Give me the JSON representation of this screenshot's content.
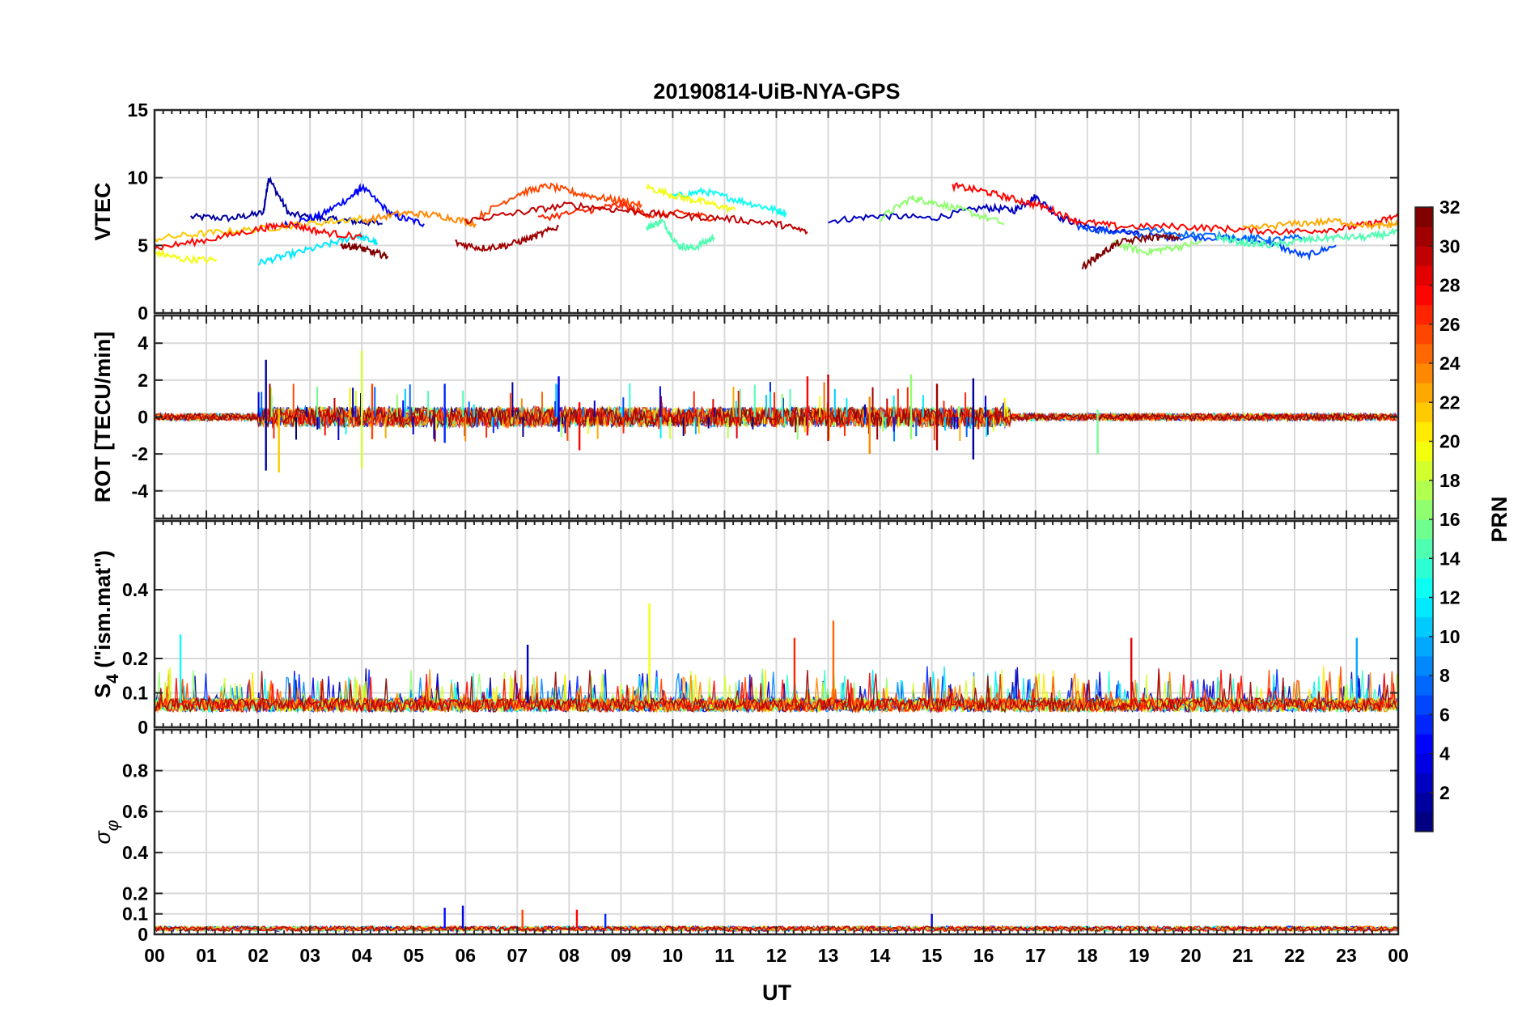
{
  "chart_data": {
    "type": "line",
    "title": "20190814-UiB-NYA-GPS",
    "xlabel": "UT",
    "x_tick_labels": [
      "00",
      "01",
      "02",
      "03",
      "04",
      "05",
      "06",
      "07",
      "08",
      "09",
      "10",
      "11",
      "12",
      "13",
      "14",
      "15",
      "16",
      "17",
      "18",
      "19",
      "20",
      "21",
      "22",
      "23",
      "00"
    ],
    "xlim": [
      0,
      24
    ],
    "grid": true,
    "panels": [
      {
        "name": "vtec",
        "ylabel": "VTEC",
        "ylim": [
          0,
          15
        ],
        "yticks": [
          0,
          5,
          10,
          15
        ],
        "ytick_labels": [
          "0",
          "5",
          "10",
          "15"
        ],
        "series": [
          {
            "prn": 2,
            "x": [
              0.7,
              1.5,
              2.1,
              2.2,
              2.6,
              3.2,
              3.8,
              4.4
            ],
            "y": [
              7.1,
              7.0,
              7.4,
              10.0,
              7.3,
              7.0,
              6.8,
              6.6
            ]
          },
          {
            "prn": 5,
            "x": [
              2.5,
              3.2,
              3.8,
              4.0,
              4.6,
              5.2
            ],
            "y": [
              6.5,
              7.2,
              8.6,
              9.3,
              7.2,
              6.6
            ]
          },
          {
            "prn": 3,
            "x": [
              13.0,
              14.0,
              15.0,
              16.0,
              16.6,
              17.0,
              17.5,
              18.2,
              19.0
            ],
            "y": [
              6.8,
              7.2,
              7.0,
              7.8,
              7.6,
              8.6,
              7.0,
              6.2,
              5.8
            ]
          },
          {
            "prn": 7,
            "x": [
              17.8,
              18.5,
              19.5,
              20.5,
              21.5,
              22.2,
              22.8
            ],
            "y": [
              6.4,
              6.0,
              5.6,
              5.6,
              5.2,
              4.2,
              5.0
            ]
          },
          {
            "prn": 12,
            "x": [
              2.0,
              2.6,
              3.3,
              3.9,
              4.3
            ],
            "y": [
              3.7,
              4.3,
              5.0,
              5.7,
              5.2
            ]
          },
          {
            "prn": 13,
            "x": [
              10.0,
              10.6,
              11.2,
              11.8,
              12.2
            ],
            "y": [
              8.6,
              9.0,
              8.4,
              7.8,
              7.4
            ]
          },
          {
            "prn": 15,
            "x": [
              9.5,
              9.8,
              10.1,
              10.4,
              10.8
            ],
            "y": [
              6.3,
              6.8,
              5.0,
              4.8,
              5.6
            ]
          },
          {
            "prn": 17,
            "x": [
              14.0,
              14.6,
              15.0,
              15.6,
              16.4
            ],
            "y": [
              7.0,
              8.5,
              8.2,
              7.6,
              6.6
            ]
          },
          {
            "prn": 17,
            "x": [
              18.5,
              19.1,
              19.6,
              20.2
            ],
            "y": [
              5.2,
              4.5,
              4.8,
              5.2
            ]
          },
          {
            "prn": 20,
            "x": [
              0.0,
              0.5,
              1.2
            ],
            "y": [
              4.5,
              4.0,
              3.9
            ]
          },
          {
            "prn": 20,
            "x": [
              9.5,
              10.1,
              10.6,
              11.2
            ],
            "y": [
              9.3,
              8.6,
              8.2,
              7.6
            ]
          },
          {
            "prn": 22,
            "x": [
              0.0,
              1.0,
              2.0,
              3.0,
              4.0
            ],
            "y": [
              5.5,
              5.9,
              6.2,
              6.6,
              7.0
            ]
          },
          {
            "prn": 24,
            "x": [
              4.0,
              4.8,
              5.5,
              6.2
            ],
            "y": [
              6.8,
              7.4,
              7.2,
              6.6
            ]
          },
          {
            "prn": 26,
            "x": [
              6.2,
              7.0,
              7.6,
              8.2,
              8.8,
              9.4
            ],
            "y": [
              7.0,
              8.8,
              9.4,
              8.8,
              8.4,
              8.0
            ]
          },
          {
            "prn": 27,
            "x": [
              7.4,
              8.4,
              9.0,
              9.6,
              10.2,
              10.8
            ],
            "y": [
              7.0,
              7.6,
              8.0,
              7.2,
              7.4,
              7.0
            ]
          },
          {
            "prn": 28,
            "x": [
              0.0,
              1.0,
              2.0,
              2.6,
              3.2,
              4.0
            ],
            "y": [
              4.8,
              5.4,
              6.2,
              6.6,
              6.0,
              5.6
            ]
          },
          {
            "prn": 28,
            "x": [
              15.4,
              16.0,
              16.6,
              17.2,
              17.8,
              18.6,
              19.8,
              20.8,
              21.8,
              22.8,
              23.5,
              24.0
            ],
            "y": [
              9.4,
              9.0,
              8.4,
              7.8,
              6.8,
              6.4,
              6.4,
              6.2,
              6.0,
              6.2,
              6.6,
              7.2
            ]
          },
          {
            "prn": 30,
            "x": [
              6.0,
              7.0,
              8.0,
              9.0,
              10.0,
              11.0,
              12.0,
              12.6
            ],
            "y": [
              6.8,
              7.4,
              8.0,
              7.6,
              7.2,
              7.0,
              6.6,
              6.0
            ]
          },
          {
            "prn": 31,
            "x": [
              5.8,
              6.3,
              6.8,
              7.3,
              7.8
            ],
            "y": [
              5.2,
              4.8,
              5.0,
              5.6,
              6.4
            ]
          },
          {
            "prn": 32,
            "x": [
              3.6,
              3.9,
              4.2,
              4.5
            ],
            "y": [
              5.0,
              4.9,
              4.5,
              4.2
            ]
          },
          {
            "prn": 32,
            "x": [
              17.9,
              18.2,
              18.6,
              19.2,
              19.8
            ],
            "y": [
              3.4,
              4.2,
              5.2,
              5.6,
              5.6
            ]
          },
          {
            "prn": 8,
            "x": [
              19.0,
              20.0,
              21.0,
              21.6,
              22.2
            ],
            "y": [
              6.2,
              5.8,
              5.6,
              5.4,
              5.6
            ]
          },
          {
            "prn": 15,
            "x": [
              20.5,
              21.0,
              21.6,
              22.2,
              22.8,
              23.4,
              24.0
            ],
            "y": [
              5.6,
              5.2,
              5.0,
              5.4,
              5.6,
              5.6,
              6.0
            ]
          },
          {
            "prn": 23,
            "x": [
              21.0,
              22.0,
              22.8,
              23.6,
              24.0
            ],
            "y": [
              6.2,
              6.6,
              6.8,
              6.4,
              6.6
            ]
          }
        ]
      },
      {
        "name": "rot",
        "ylabel": "ROT [TECU/min]",
        "ylim": [
          -5.5,
          5.5
        ],
        "yticks": [
          -4,
          -2,
          0,
          2,
          4
        ],
        "ytick_labels": [
          "-4",
          "-2",
          "0",
          "2",
          "4"
        ],
        "spikes": [
          {
            "t": 2.15,
            "min": -2.9,
            "max": 3.1,
            "prn": 2
          },
          {
            "t": 2.4,
            "min": -3.0,
            "max": 0.4,
            "prn": 22
          },
          {
            "t": 4.0,
            "min": -2.8,
            "max": 3.6,
            "prn": 19
          },
          {
            "t": 4.2,
            "min": -1.2,
            "max": 1.8,
            "prn": 26
          },
          {
            "t": 5.6,
            "min": -1.4,
            "max": 1.8,
            "prn": 6
          },
          {
            "t": 7.8,
            "min": -0.8,
            "max": 2.2,
            "prn": 4
          },
          {
            "t": 8.2,
            "min": -1.8,
            "max": 0.8,
            "prn": 28
          },
          {
            "t": 12.6,
            "min": -1.0,
            "max": 2.2,
            "prn": 28
          },
          {
            "t": 13.0,
            "min": -1.3,
            "max": 2.3,
            "prn": 30
          },
          {
            "t": 13.8,
            "min": -2.0,
            "max": 1.1,
            "prn": 24
          },
          {
            "t": 14.6,
            "min": -1.2,
            "max": 2.3,
            "prn": 17
          },
          {
            "t": 15.1,
            "min": -1.8,
            "max": 1.8,
            "prn": 31
          },
          {
            "t": 15.8,
            "min": -2.3,
            "max": 2.1,
            "prn": 2
          },
          {
            "t": 18.2,
            "min": -2.0,
            "max": 0.4,
            "prn": 16
          }
        ]
      },
      {
        "name": "s4",
        "ylabel_main": "S",
        "ylabel_sub": "4",
        "ylabel_rest": " (\"ism.mat\")",
        "ylim": [
          0,
          0.6
        ],
        "yticks": [
          0,
          0.1,
          0.2,
          0.4
        ],
        "ytick_labels": [
          "0",
          "0.1",
          "0.2",
          "0.4"
        ],
        "spikes": [
          {
            "t": 0.5,
            "max": 0.27,
            "prn": 13
          },
          {
            "t": 7.2,
            "max": 0.24,
            "prn": 3
          },
          {
            "t": 9.55,
            "max": 0.36,
            "prn": 20
          },
          {
            "t": 12.35,
            "max": 0.26,
            "prn": 27
          },
          {
            "t": 13.1,
            "max": 0.31,
            "prn": 25
          },
          {
            "t": 18.85,
            "max": 0.26,
            "prn": 29
          },
          {
            "t": 23.2,
            "max": 0.26,
            "prn": 10
          }
        ]
      },
      {
        "name": "sigma-phi",
        "ylabel_main": "σ",
        "ylabel_sub": "φ",
        "ylim": [
          0,
          1
        ],
        "yticks": [
          0,
          0.1,
          0.2,
          0.4,
          0.6,
          0.8
        ],
        "ytick_labels": [
          "0",
          "0.1",
          "0.2",
          "0.4",
          "0.6",
          "0.8"
        ],
        "spikes": [
          {
            "t": 5.6,
            "max": 0.13,
            "prn": 5
          },
          {
            "t": 5.95,
            "max": 0.14,
            "prn": 4
          },
          {
            "t": 7.1,
            "max": 0.12,
            "prn": 26
          },
          {
            "t": 8.15,
            "max": 0.12,
            "prn": 28
          },
          {
            "t": 8.7,
            "max": 0.1,
            "prn": 6
          },
          {
            "t": 15.0,
            "max": 0.1,
            "prn": 4
          }
        ]
      }
    ],
    "colorbar": {
      "label": "PRN",
      "range": [
        1,
        32
      ],
      "colormap": "jet",
      "ticks": [
        2,
        4,
        6,
        8,
        10,
        12,
        14,
        16,
        18,
        20,
        22,
        24,
        26,
        28,
        30,
        32
      ],
      "tick_labels": [
        "2",
        "4",
        "6",
        "8",
        "10",
        "12",
        "14",
        "16",
        "18",
        "20",
        "22",
        "24",
        "26",
        "28",
        "30",
        "32"
      ]
    }
  }
}
